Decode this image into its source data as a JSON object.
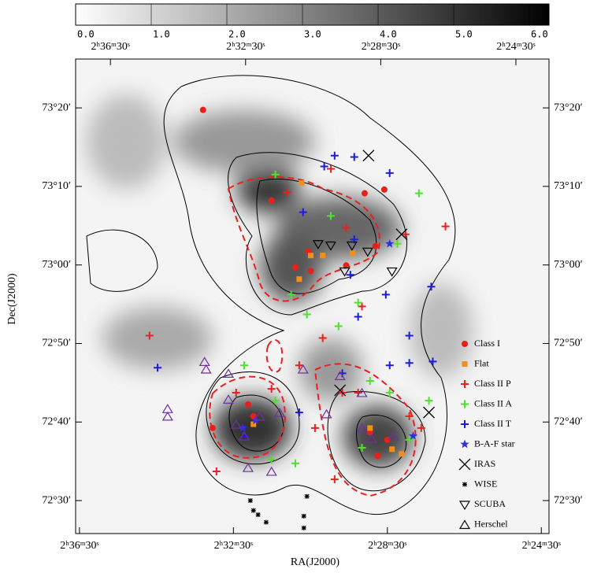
{
  "chart_data": {
    "type": "scatter",
    "xlabel": "RA(J2000)",
    "ylabel": "Dec(J2000)",
    "xlim": [
      156.6,
      144.3
    ],
    "ylim": [
      72.43,
      73.437
    ],
    "xticks": [
      {
        "value": 156.5,
        "label": "2ʰ36ᵐ30ˢ"
      },
      {
        "value": 152.5,
        "label": "2ʰ32ᵐ30ˢ"
      },
      {
        "value": 148.5,
        "label": "2ʰ28ᵐ30ˢ"
      },
      {
        "value": 144.5,
        "label": "2ʰ24ᵐ30ˢ"
      }
    ],
    "x2lim": [
      157.53,
      143.52
    ],
    "x2ticks": [
      {
        "value": 156.5,
        "label": "2ʰ36ᵐ30ˢ"
      },
      {
        "value": 152.5,
        "label": "2ʰ32ᵐ30ˢ"
      },
      {
        "value": 148.5,
        "label": "2ʰ28ᵐ30ˢ"
      },
      {
        "value": 144.5,
        "label": "2ʰ24ᵐ30ˢ"
      }
    ],
    "yticks": [
      {
        "value": 73.3333,
        "label": "73°20′"
      },
      {
        "value": 73.1667,
        "label": "73°10′"
      },
      {
        "value": 73.0,
        "label": "73°00′"
      },
      {
        "value": 72.8333,
        "label": "72°50′"
      },
      {
        "value": 72.6667,
        "label": "72°40′"
      },
      {
        "value": 72.5,
        "label": "72°30′"
      }
    ],
    "colorbar": {
      "lim": [
        0,
        6.26
      ],
      "ticks": [
        {
          "value": 0,
          "label": "0.0"
        },
        {
          "value": 1,
          "label": "1.0"
        },
        {
          "value": 2,
          "label": "2.0"
        },
        {
          "value": 3,
          "label": "3.0"
        },
        {
          "value": 4,
          "label": "4.0"
        },
        {
          "value": 5,
          "label": "5.0"
        },
        {
          "value": 6,
          "label": "6.0"
        }
      ]
    },
    "legend": "lower right",
    "series": [
      {
        "name": "Class I",
        "color": "#e8201a",
        "marker": "circle",
        "x": [
          153.29,
          151.51,
          149.09,
          148.58,
          150.55,
          150.49,
          150.89,
          149.57,
          148.81,
          151.98,
          148.95,
          148.5,
          148.75,
          153.04,
          152.12
        ],
        "y": [
          73.329,
          73.137,
          73.152,
          73.16,
          73.029,
          72.987,
          72.995,
          72.999,
          73.04,
          72.679,
          72.645,
          72.629,
          72.595,
          72.654,
          72.704
        ]
      },
      {
        "name": "Flat",
        "color": "#f0901a",
        "marker": "square",
        "x": [
          150.73,
          150.49,
          150.18,
          149.4,
          150.79,
          151.98,
          148.95,
          148.13,
          148.38
        ],
        "y": [
          73.174,
          73.02,
          73.02,
          73.025,
          72.97,
          72.662,
          72.654,
          72.599,
          72.609
        ]
      },
      {
        "name": "Class II P",
        "color": "#e82020",
        "marker": "plus",
        "x": [
          154.68,
          146.99,
          148.03,
          149.57,
          149.97,
          151.1,
          149.16,
          150.18,
          150.79,
          152.43,
          151.51,
          149.67,
          149.26,
          150.38,
          149.87,
          147.93,
          147.62,
          152.94
        ],
        "y": [
          72.85,
          73.082,
          73.065,
          73.079,
          73.204,
          73.154,
          72.912,
          72.845,
          72.787,
          72.729,
          72.737,
          72.729,
          72.729,
          72.654,
          72.545,
          72.679,
          72.654,
          72.562
        ]
      },
      {
        "name": "Class II A",
        "color": "#50e030",
        "marker": "plus",
        "x": [
          151.41,
          147.68,
          148.24,
          149.97,
          151.0,
          149.26,
          149.77,
          150.59,
          148.95,
          148.44,
          147.42,
          152.22,
          151.51,
          150.89,
          149.16,
          147.93,
          151.41
        ],
        "y": [
          73.192,
          73.152,
          73.045,
          73.104,
          72.937,
          72.92,
          72.87,
          72.895,
          72.754,
          72.729,
          72.712,
          72.787,
          72.587,
          72.579,
          72.612,
          72.629,
          72.712
        ]
      },
      {
        "name": "Class II T",
        "color": "#1a1ae0",
        "marker": "plus",
        "x": [
          149.87,
          149.36,
          150.14,
          148.44,
          150.69,
          149.36,
          149.46,
          148.54,
          149.26,
          147.93,
          147.36,
          147.32,
          147.93,
          154.47,
          148.44,
          149.67,
          150.79,
          152.22
        ],
        "y": [
          73.232,
          73.229,
          73.209,
          73.195,
          73.112,
          73.054,
          72.979,
          72.937,
          72.89,
          72.85,
          72.954,
          72.795,
          72.792,
          72.782,
          72.787,
          72.77,
          72.687,
          72.637
        ]
      },
      {
        "name": "B-A-F star",
        "color": "#3030e0",
        "marker": "star",
        "x": [
          152.26,
          151.92,
          147.83,
          148.44
        ],
        "y": [
          72.654,
          72.67,
          72.637,
          73.045
        ]
      },
      {
        "name": "IRAS",
        "color": "#000000",
        "marker": "cross",
        "x": [
          147.42,
          149.73,
          148.99,
          148.13
        ],
        "y": [
          72.687,
          72.734,
          73.232,
          73.065
        ]
      },
      {
        "name": "WISE",
        "color": "#000000",
        "marker": "asterisk",
        "x": [
          152.06,
          151.98,
          151.86,
          151.65,
          150.59,
          150.67,
          150.67
        ],
        "y": [
          72.5,
          72.479,
          72.47,
          72.454,
          72.509,
          72.467,
          72.442
        ]
      },
      {
        "name": "SCUBA",
        "color": "#000000",
        "marker": "triangle-down",
        "x": [
          150.3,
          149.97,
          149.42,
          149.01,
          149.61,
          148.38
        ],
        "y": [
          73.045,
          73.042,
          73.042,
          73.029,
          72.987,
          72.987
        ]
      },
      {
        "name": "Herschel",
        "color": "#7030a0",
        "marker": "triangle-up",
        "x": [
          154.21,
          154.21,
          153.25,
          153.21,
          152.63,
          152.63,
          152.43,
          152.22,
          151.82,
          151.3,
          151.51,
          152.12,
          150.69,
          149.73,
          149.16,
          150.08,
          148.91,
          148.34,
          149.16
        ],
        "y": [
          72.695,
          72.679,
          72.795,
          72.779,
          72.77,
          72.715,
          72.662,
          72.637,
          72.679,
          72.687,
          72.562,
          72.57,
          72.779,
          72.765,
          72.729,
          72.684,
          72.632,
          72.637,
          72.654
        ]
      }
    ]
  }
}
